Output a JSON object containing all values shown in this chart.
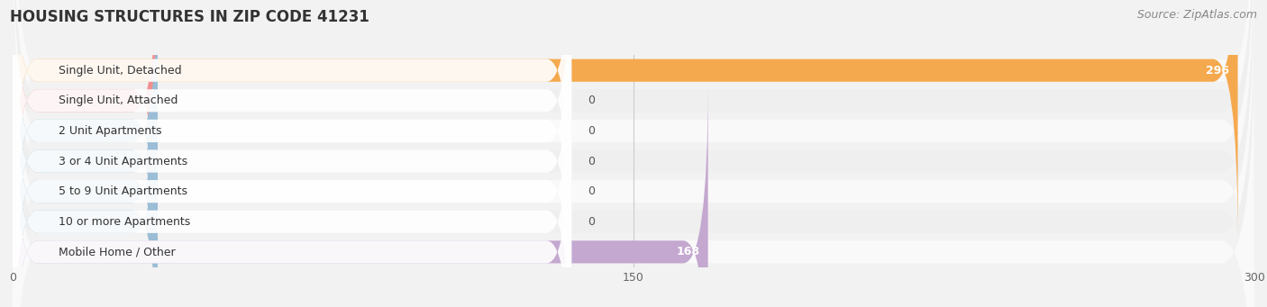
{
  "title": "HOUSING STRUCTURES IN ZIP CODE 41231",
  "source": "Source: ZipAtlas.com",
  "categories": [
    "Single Unit, Detached",
    "Single Unit, Attached",
    "2 Unit Apartments",
    "3 or 4 Unit Apartments",
    "5 to 9 Unit Apartments",
    "10 or more Apartments",
    "Mobile Home / Other"
  ],
  "values": [
    296,
    0,
    0,
    0,
    0,
    0,
    168
  ],
  "bar_colors": [
    "#F5A94E",
    "#F09090",
    "#9BBDD6",
    "#9BBDD6",
    "#9BBDD6",
    "#9BBDD6",
    "#C4A8D0"
  ],
  "xlim": [
    0,
    300
  ],
  "xticks": [
    0,
    150,
    300
  ],
  "bg_color": "#f2f2f2",
  "row_bg_light": "#f9f9f9",
  "row_bg_dark": "#efefef",
  "bar_bg_color": "#e8e8e8",
  "title_fontsize": 12,
  "source_fontsize": 9,
  "label_fontsize": 9,
  "value_fontsize": 9
}
